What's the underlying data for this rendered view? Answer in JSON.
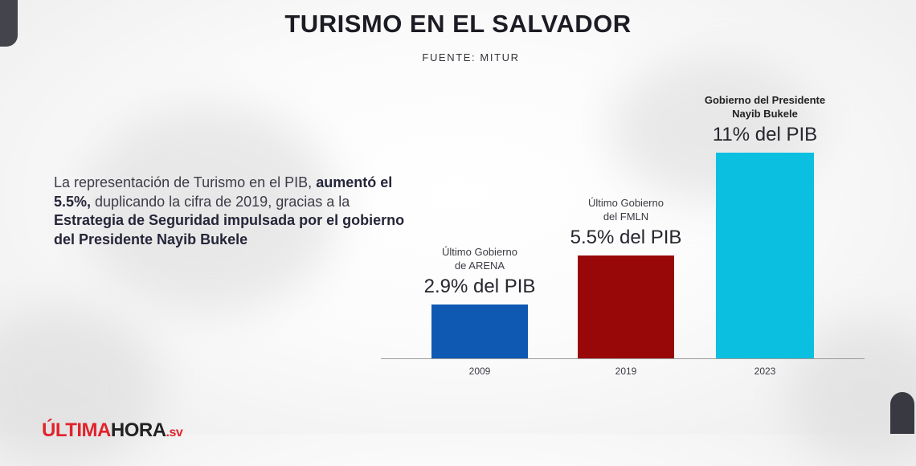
{
  "header": {
    "title": "TURISMO EN EL SALVADOR",
    "source": "FUENTE: MITUR"
  },
  "description": {
    "part1": "La representación de Turismo en el PIB, ",
    "bold1": "aumentó el 5.5%,",
    "part2": " duplicando la cifra de 2019, gracias a la ",
    "bold2": "Estrategia de Seguridad impulsada por el gobierno del Presidente Nayib Bukele"
  },
  "chart_data": {
    "type": "bar",
    "categories": [
      "2009",
      "2019",
      "2023"
    ],
    "values": [
      2.9,
      5.5,
      11
    ],
    "bar_colors": [
      "#0f59b3",
      "#990808",
      "#0abfe0"
    ],
    "captions": [
      {
        "line1": "Último Gobierno",
        "line2": "de ARENA",
        "value_label": "2.9% del PIB"
      },
      {
        "line1": "Último Gobierno",
        "line2": "del FMLN",
        "value_label": "5.5% del PIB"
      },
      {
        "line1": "Gobierno del Presidente",
        "line2": "Nayib Bukele",
        "value_label": "11% del PIB"
      }
    ],
    "title": "TURISMO EN EL SALVADOR",
    "xlabel": "",
    "ylabel": "",
    "unit": "% del PIB",
    "grid": false
  },
  "logo": {
    "part1": "ÚLTIMA",
    "part2": "HORA",
    "part3": ".sv"
  }
}
